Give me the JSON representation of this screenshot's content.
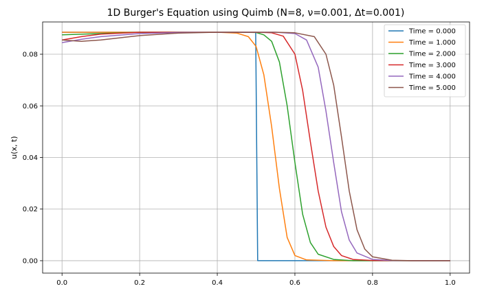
{
  "chart_data": {
    "type": "line",
    "title": "1D Burger's Equation using Quimb (N=8, ν=0.001, Δt=0.001)",
    "xlabel": "x",
    "ylabel": "u(x, t)",
    "xlim": [
      -0.05,
      1.05
    ],
    "ylim": [
      -0.0048,
      0.0925
    ],
    "xticks": [
      "0.0",
      "0.2",
      "0.4",
      "0.6",
      "0.8",
      "1.0"
    ],
    "yticks": [
      "0.00",
      "0.02",
      "0.04",
      "0.06",
      "0.08"
    ],
    "grid": true,
    "legend_position": "top-right",
    "series": [
      {
        "name": "Time = 0.000",
        "color": "#1f77b4",
        "x": [
          0.0,
          0.1,
          0.2,
          0.3,
          0.4,
          0.499,
          0.504,
          0.6,
          0.7,
          0.8,
          0.9,
          1.0
        ],
        "y": [
          0.0885,
          0.0885,
          0.0885,
          0.0885,
          0.0885,
          0.0885,
          0.0,
          0.0,
          0.0,
          0.0,
          0.0,
          0.0
        ]
      },
      {
        "name": "Time = 1.000",
        "color": "#ff7f0e",
        "x": [
          0.0,
          0.1,
          0.2,
          0.3,
          0.4,
          0.45,
          0.48,
          0.5,
          0.52,
          0.54,
          0.56,
          0.58,
          0.6,
          0.63,
          0.7,
          0.8,
          0.9,
          1.0
        ],
        "y": [
          0.0885,
          0.0885,
          0.0885,
          0.0885,
          0.0885,
          0.0882,
          0.0868,
          0.083,
          0.072,
          0.052,
          0.028,
          0.009,
          0.002,
          0.0003,
          0.0,
          0.0,
          0.0,
          0.0
        ]
      },
      {
        "name": "Time = 2.000",
        "color": "#2ca02c",
        "x": [
          0.0,
          0.1,
          0.2,
          0.3,
          0.4,
          0.45,
          0.5,
          0.52,
          0.54,
          0.56,
          0.58,
          0.6,
          0.62,
          0.64,
          0.66,
          0.7,
          0.75,
          0.8,
          0.9,
          1.0
        ],
        "y": [
          0.0875,
          0.088,
          0.0885,
          0.0885,
          0.0885,
          0.0885,
          0.0884,
          0.0875,
          0.085,
          0.077,
          0.06,
          0.038,
          0.018,
          0.007,
          0.0025,
          0.0005,
          0.0,
          0.0,
          0.0,
          0.0
        ]
      },
      {
        "name": "Time = 3.000",
        "color": "#d62728",
        "x": [
          0.0,
          0.05,
          0.1,
          0.2,
          0.3,
          0.4,
          0.5,
          0.54,
          0.57,
          0.6,
          0.62,
          0.64,
          0.66,
          0.68,
          0.7,
          0.72,
          0.75,
          0.8,
          0.9,
          1.0
        ],
        "y": [
          0.0855,
          0.0868,
          0.0878,
          0.0885,
          0.0885,
          0.0885,
          0.0885,
          0.0883,
          0.087,
          0.08,
          0.066,
          0.046,
          0.027,
          0.013,
          0.0055,
          0.002,
          0.0005,
          0.0001,
          0.0,
          0.0
        ]
      },
      {
        "name": "Time = 4.000",
        "color": "#9467bd",
        "x": [
          0.0,
          0.05,
          0.1,
          0.2,
          0.3,
          0.4,
          0.5,
          0.55,
          0.6,
          0.63,
          0.66,
          0.68,
          0.7,
          0.72,
          0.74,
          0.76,
          0.8,
          0.85,
          0.9,
          1.0
        ],
        "y": [
          0.0845,
          0.0858,
          0.0868,
          0.088,
          0.0884,
          0.0885,
          0.0885,
          0.0885,
          0.088,
          0.0855,
          0.075,
          0.058,
          0.038,
          0.019,
          0.008,
          0.003,
          0.0005,
          0.0001,
          0.0,
          0.0
        ]
      },
      {
        "name": "Time = 5.000",
        "color": "#8c564b",
        "x": [
          0.0,
          0.05,
          0.1,
          0.2,
          0.3,
          0.4,
          0.5,
          0.55,
          0.6,
          0.65,
          0.68,
          0.7,
          0.72,
          0.74,
          0.76,
          0.78,
          0.8,
          0.85,
          0.9,
          1.0
        ],
        "y": [
          0.0855,
          0.085,
          0.0855,
          0.0872,
          0.0882,
          0.0885,
          0.0885,
          0.0885,
          0.0883,
          0.0868,
          0.08,
          0.068,
          0.048,
          0.027,
          0.012,
          0.0045,
          0.0015,
          0.0002,
          0.0,
          0.0
        ]
      }
    ]
  }
}
